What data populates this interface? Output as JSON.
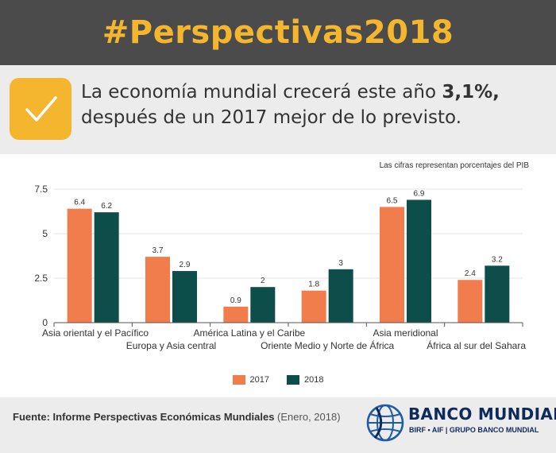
{
  "header": {
    "title": "#Perspectivas2018"
  },
  "banner": {
    "text_before": "La economía mundial crecerá este año ",
    "highlight": "3,1%,",
    "text_after": "después de un 2017 mejor de lo previsto."
  },
  "chart_note": "Las cifras representan porcentajes del PIB",
  "colors": {
    "s2017": "#f27d4c",
    "s2018": "#0d4d4a",
    "accent": "#f4b52f",
    "header_bg": "#4b4b4b"
  },
  "chart_data": {
    "type": "bar",
    "categories": [
      "Asia oriental y el Pacífico",
      "Europa y Asia central",
      "América Latina y el Caribe",
      "Oriente Medio y Norte de África",
      "Asia meridional",
      "África al sur del Sahara"
    ],
    "series": [
      {
        "name": "2017",
        "values": [
          6.4,
          3.7,
          0.9,
          1.8,
          6.5,
          2.4
        ],
        "labels": [
          "6.4",
          "3.7",
          "0.9",
          "1.8",
          "6.5",
          "2.4"
        ]
      },
      {
        "name": "2018",
        "values": [
          6.2,
          2.9,
          2,
          3,
          6.9,
          3.2
        ],
        "labels": [
          "6.2",
          "2.9",
          "2",
          "3",
          "6.9",
          "3.2"
        ]
      }
    ],
    "yticks": [
      "0",
      "2.5",
      "5",
      "7.5"
    ],
    "ylim": [
      0,
      7.5
    ],
    "title": "",
    "xlabel": "",
    "ylabel": ""
  },
  "legend": {
    "s2017": "2017",
    "s2018": "2018"
  },
  "footer": {
    "source_label": "Fuente: Informe Perspectivas Económicas Mundiales",
    "source_date": " (Enero, 2018)",
    "logo_name": "BANCO MUNDIAL",
    "logo_sub": "BIRF • AIF | GRUPO BANCO MUNDIAL"
  }
}
